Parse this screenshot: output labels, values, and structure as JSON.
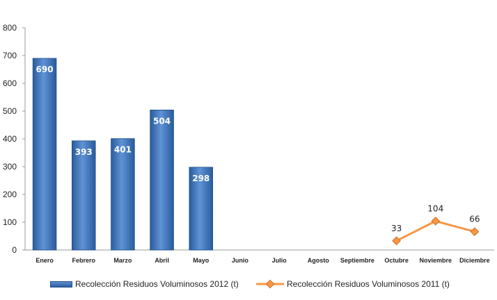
{
  "chart_data": {
    "type": "bar",
    "categories": [
      "Enero",
      "Febrero",
      "Marzo",
      "Abril",
      "Mayo",
      "Junio",
      "Julio",
      "Agosto",
      "Septiembre",
      "Octubre",
      "Noviembre",
      "Diciembre"
    ],
    "y_ticks": [
      "0",
      "100",
      "200",
      "300",
      "400",
      "500",
      "600",
      "700",
      "800"
    ],
    "ylim": [
      0,
      800
    ],
    "grid": false,
    "legend_position": "bottom",
    "series": [
      {
        "name": "Recolección Residuos Voluminosos 2012 (t)",
        "type": "bar",
        "color": "#3a6fb4",
        "values": [
          690,
          393,
          401,
          504,
          298,
          null,
          null,
          null,
          null,
          null,
          null,
          null
        ]
      },
      {
        "name": "Recolección Residuos Voluminosos 2011 (t)",
        "type": "line",
        "color": "#f79646",
        "values": [
          null,
          null,
          null,
          null,
          null,
          null,
          null,
          null,
          null,
          33,
          104,
          66
        ]
      }
    ]
  }
}
